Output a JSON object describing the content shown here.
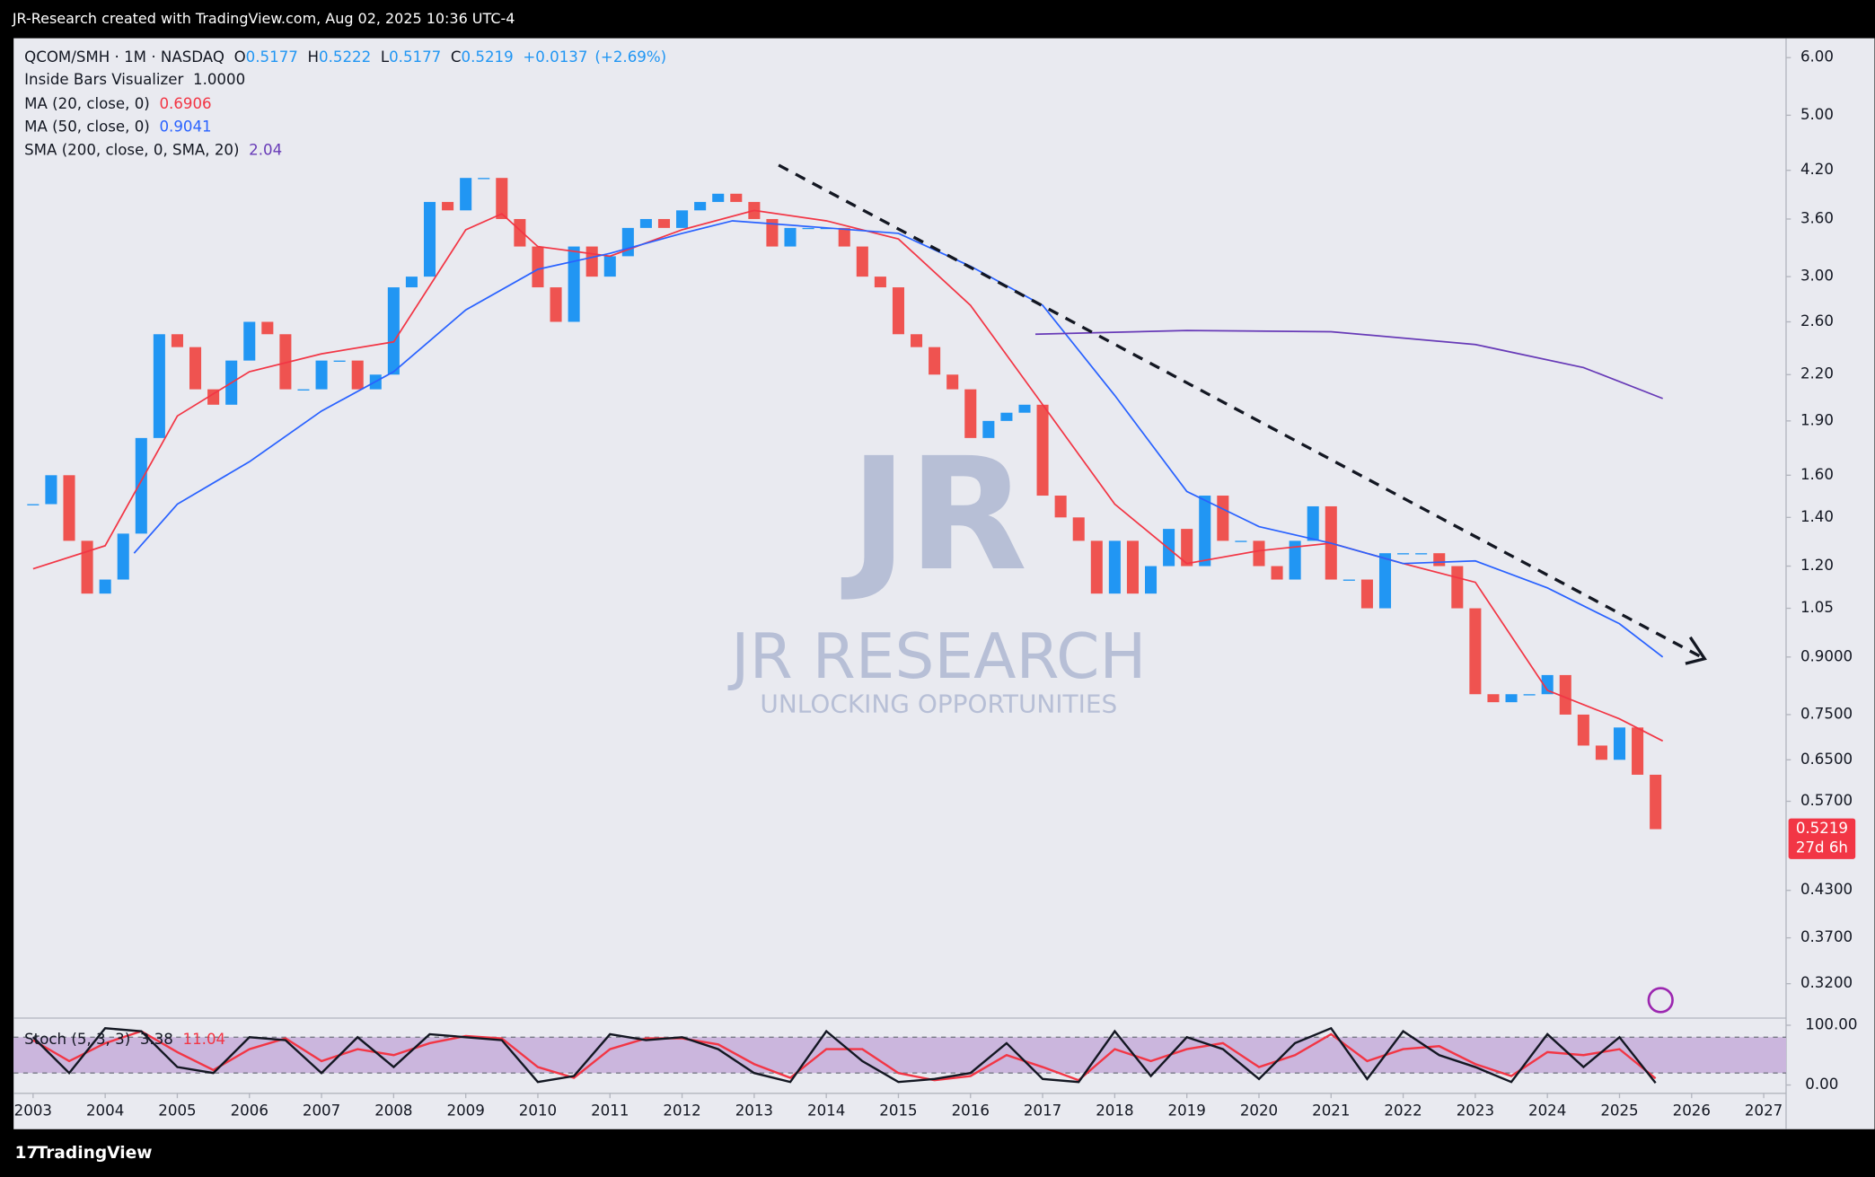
{
  "header": "JR-Research created with TradingView.com, Aug 02, 2025 10:36 UTC-4",
  "footer": "TradingView",
  "chart_data": {
    "type": "candlestick",
    "symbol": "QCOM/SMH · 1M · NASDAQ",
    "ohlc_legend": [
      {
        "label": "O",
        "value": 0.5177
      },
      {
        "label": "H",
        "value": 0.5222
      },
      {
        "label": "L",
        "value": 0.5177
      },
      {
        "label": "C",
        "value": 0.5219
      }
    ],
    "change": {
      "value": 0.0137,
      "label": "+0.0137"
    },
    "change_pct": {
      "value": 2.69,
      "label": "(+2.69%)"
    },
    "indicator": {
      "name": "Inside Bars Visualizer",
      "value": {
        "value": 1,
        "label": "1.0000"
      }
    },
    "log_scale": true,
    "grid": false,
    "up_color": "#2196f3",
    "down_color": "#ef5350",
    "x": [
      2003,
      2003.25,
      2003.5,
      2003.75,
      2004,
      2004.25,
      2004.5,
      2004.75,
      2005,
      2005.25,
      2005.5,
      2005.75,
      2006,
      2006.25,
      2006.5,
      2006.75,
      2007,
      2007.25,
      2007.5,
      2007.75,
      2008,
      2008.25,
      2008.5,
      2008.75,
      2009,
      2009.25,
      2009.5,
      2009.75,
      2010,
      2010.25,
      2010.5,
      2010.75,
      2011,
      2011.25,
      2011.5,
      2011.75,
      2012,
      2012.25,
      2012.5,
      2012.75,
      2013,
      2013.25,
      2013.5,
      2013.75,
      2014,
      2014.25,
      2014.5,
      2014.75,
      2015,
      2015.25,
      2015.5,
      2015.75,
      2016,
      2016.25,
      2016.5,
      2016.75,
      2017,
      2017.25,
      2017.5,
      2017.75,
      2018,
      2018.25,
      2018.5,
      2018.75,
      2019,
      2019.25,
      2019.5,
      2019.75,
      2020,
      2020.25,
      2020.5,
      2020.75,
      2021,
      2021.25,
      2021.5,
      2021.75,
      2022,
      2022.25,
      2022.5,
      2022.75,
      2023,
      2023.25,
      2023.5,
      2023.75,
      2024,
      2024.25,
      2024.5,
      2024.75,
      2025,
      2025.25,
      2025.5
    ],
    "close": [
      1.46,
      1.6,
      1.3,
      1.1,
      1.15,
      1.33,
      1.8,
      2.5,
      2.4,
      2.1,
      2.0,
      2.3,
      2.6,
      2.5,
      2.1,
      2.1,
      2.3,
      2.3,
      2.1,
      2.2,
      2.9,
      3.0,
      3.8,
      3.7,
      4.1,
      4.1,
      3.6,
      3.3,
      2.9,
      2.6,
      3.3,
      3.0,
      3.2,
      3.5,
      3.6,
      3.5,
      3.7,
      3.8,
      3.9,
      3.8,
      3.6,
      3.3,
      3.5,
      3.5,
      3.5,
      3.3,
      3.0,
      2.9,
      2.5,
      2.4,
      2.2,
      2.1,
      1.8,
      1.9,
      1.95,
      2.0,
      1.5,
      1.4,
      1.3,
      1.1,
      1.3,
      1.1,
      1.2,
      1.35,
      1.2,
      1.5,
      1.3,
      1.3,
      1.2,
      1.15,
      1.3,
      1.45,
      1.15,
      1.15,
      1.05,
      1.25,
      1.25,
      1.25,
      1.2,
      1.05,
      0.8,
      0.78,
      0.8,
      0.8,
      0.85,
      0.75,
      0.68,
      0.65,
      0.72,
      0.62,
      0.5219
    ],
    "series": [
      {
        "name": "MA (20, close, 0)",
        "color": "#f23645",
        "last_value": 0.6906,
        "x": [
          2003,
          2004,
          2005,
          2006,
          2007,
          2008,
          2009,
          2009.5,
          2010,
          2011,
          2012,
          2013,
          2014,
          2015,
          2016,
          2017,
          2018,
          2019,
          2020,
          2021,
          2022,
          2023,
          2024,
          2025,
          2025.6
        ],
        "values": [
          1.19,
          1.28,
          1.93,
          2.22,
          2.35,
          2.44,
          3.48,
          3.66,
          3.3,
          3.2,
          3.48,
          3.7,
          3.58,
          3.38,
          2.74,
          2.0,
          1.46,
          1.21,
          1.26,
          1.29,
          1.21,
          1.14,
          0.81,
          0.74,
          0.69
        ]
      },
      {
        "name": "MA (50, close, 0)",
        "color": "#2962ff",
        "last_value": 0.9041,
        "x": [
          2004.4,
          2005,
          2006,
          2007,
          2008,
          2009,
          2010,
          2011,
          2012,
          2012.7,
          2014,
          2015,
          2016,
          2017,
          2018,
          2019,
          2020,
          2021,
          2022,
          2023,
          2024,
          2025,
          2025.6
        ],
        "values": [
          1.25,
          1.46,
          1.67,
          1.96,
          2.22,
          2.7,
          3.07,
          3.23,
          3.44,
          3.58,
          3.5,
          3.44,
          3.1,
          2.74,
          2.06,
          1.52,
          1.36,
          1.29,
          1.21,
          1.22,
          1.12,
          1.0,
          0.9
        ]
      },
      {
        "name": "SMA (200, close, 0, SMA, 20)",
        "color": "#673ab7",
        "last_value": 2.04,
        "x": [
          2016.9,
          2019,
          2021,
          2023,
          2024.5,
          2025.6
        ],
        "values": [
          2.5,
          2.53,
          2.52,
          2.42,
          2.25,
          2.04
        ]
      }
    ],
    "trendline": {
      "x": [
        2013.34,
        2026.18
      ],
      "values": [
        4.27,
        0.895
      ]
    },
    "last_price": 0.5219,
    "countdown": "27d 6h",
    "watermark": {
      "logo": "JR",
      "title": "JR RESEARCH",
      "subtitle": "UNLOCKING OPPORTUNITIES"
    },
    "xlim": [
      2002.73,
      2027.31
    ],
    "xticks": [
      2003,
      2004,
      2005,
      2006,
      2007,
      2008,
      2009,
      2010,
      2011,
      2012,
      2013,
      2014,
      2015,
      2016,
      2017,
      2018,
      2019,
      2020,
      2021,
      2022,
      2023,
      2024,
      2025,
      2026,
      2027
    ],
    "ylim": [
      0.287,
      6.38
    ],
    "yticks": [
      {
        "value": 6,
        "label": "6.00"
      },
      {
        "value": 5,
        "label": "5.00"
      },
      {
        "value": 4.2,
        "label": "4.20"
      },
      {
        "value": 3.6,
        "label": "3.60"
      },
      {
        "value": 3,
        "label": "3.00"
      },
      {
        "value": 2.6,
        "label": "2.60"
      },
      {
        "value": 2.2,
        "label": "2.20"
      },
      {
        "value": 1.9,
        "label": "1.90"
      },
      {
        "value": 1.6,
        "label": "1.60"
      },
      {
        "value": 1.4,
        "label": "1.40"
      },
      {
        "value": 1.2,
        "label": "1.20"
      },
      1.05,
      {
        "value": 0.9,
        "label": "0.9000"
      },
      {
        "value": 0.75,
        "label": "0.7500"
      },
      {
        "value": 0.65,
        "label": "0.6500"
      },
      {
        "value": 0.57,
        "label": "0.5700"
      },
      {
        "value": 0.43,
        "label": "0.4300"
      },
      {
        "value": 0.37,
        "label": "0.3700"
      },
      {
        "value": 0.32,
        "label": "0.3200"
      }
    ],
    "stoch": {
      "name": "Stoch (5, 3, 3)",
      "x": [
        2003,
        2003.5,
        2004,
        2004.5,
        2005,
        2005.5,
        2006,
        2006.5,
        2007,
        2007.5,
        2008,
        2008.5,
        2009,
        2009.5,
        2010,
        2010.5,
        2011,
        2011.5,
        2012,
        2012.5,
        2013,
        2013.5,
        2014,
        2014.5,
        2015,
        2015.5,
        2016,
        2016.5,
        2017,
        2017.5,
        2018,
        2018.5,
        2019,
        2019.5,
        2020,
        2020.5,
        2021,
        2021.5,
        2022,
        2022.5,
        2023,
        2023.5,
        2024,
        2024.5,
        2025,
        2025.5
      ],
      "k": {
        "color": "#131722",
        "values": [
          80,
          20,
          95,
          90,
          30,
          20,
          80,
          75,
          20,
          80,
          30,
          85,
          80,
          75,
          5,
          15,
          85,
          75,
          80,
          60,
          20,
          5,
          90,
          40,
          5,
          10,
          20,
          70,
          10,
          5,
          90,
          15,
          80,
          60,
          10,
          70,
          95,
          10,
          90,
          50,
          30,
          5,
          85,
          30,
          80,
          3.38
        ]
      },
      "d": {
        "color": "#f23645",
        "values": [
          75,
          40,
          70,
          90,
          55,
          25,
          60,
          78,
          40,
          60,
          50,
          70,
          82,
          78,
          30,
          12,
          60,
          78,
          78,
          68,
          35,
          12,
          60,
          60,
          20,
          8,
          15,
          50,
          30,
          8,
          60,
          40,
          60,
          70,
          30,
          50,
          85,
          40,
          60,
          65,
          35,
          15,
          55,
          50,
          60,
          11.04
        ]
      },
      "bands": [
        20,
        80
      ],
      "ylim": [
        -14,
        112
      ],
      "yticks": [
        {
          "value": 100,
          "label": "100.00"
        },
        {
          "value": 0,
          "label": "0.00"
        }
      ]
    }
  }
}
